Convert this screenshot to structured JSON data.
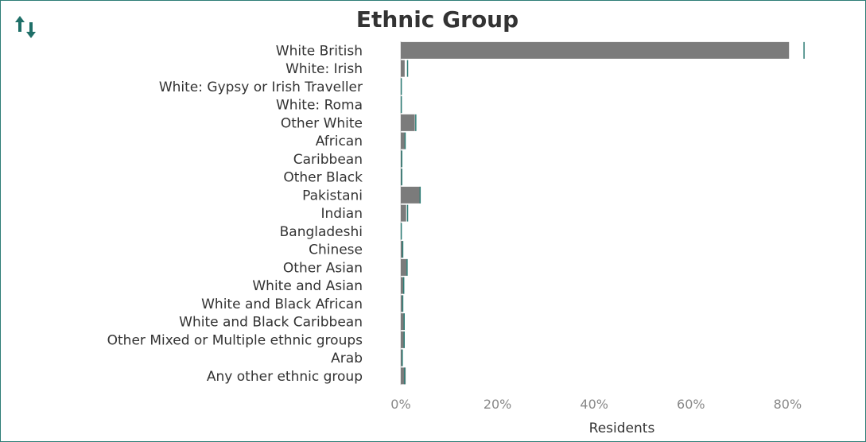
{
  "sort_icon": "sort-ascending-descending-icon",
  "colors": {
    "bar": "#7b7b7b",
    "reference_line": "#2e7d76",
    "frame": "#2e7d76"
  },
  "chart_data": {
    "type": "bar",
    "orientation": "horizontal",
    "title": "Ethnic Group",
    "xlabel": "Residents",
    "xlim": [
      0,
      100
    ],
    "x_ticks": [
      "0%",
      "20%",
      "40%",
      "60%",
      "80%"
    ],
    "x_tick_values": [
      0,
      20,
      40,
      60,
      80
    ],
    "categories": [
      "White British",
      "White: Irish",
      "White: Gypsy or Irish Traveller",
      "White: Roma",
      "Other White",
      "African",
      "Caribbean",
      "Other Black",
      "Pakistani",
      "Indian",
      "Bangladeshi",
      "Chinese",
      "Other Asian",
      "White and Asian",
      "White and Black African",
      "White and Black Caribbean",
      "Other Mixed or Multiple ethnic groups",
      "Arab",
      "Any other ethnic group"
    ],
    "series": [
      {
        "values": [
          80.3,
          0.8,
          0.1,
          0.2,
          2.9,
          0.9,
          0.1,
          0.1,
          4.1,
          1.1,
          0.1,
          0.4,
          1.2,
          0.7,
          0.3,
          0.6,
          0.6,
          0.3,
          1.0
        ]
      }
    ],
    "reference_markers": [
      83.4,
      1.4,
      0.1,
      0.1,
      3.1,
      0.9,
      0.2,
      0.2,
      4.0,
      1.4,
      0.1,
      0.4,
      1.3,
      0.6,
      0.4,
      0.7,
      0.7,
      0.3,
      0.8
    ],
    "grid": false,
    "legend": "none"
  }
}
